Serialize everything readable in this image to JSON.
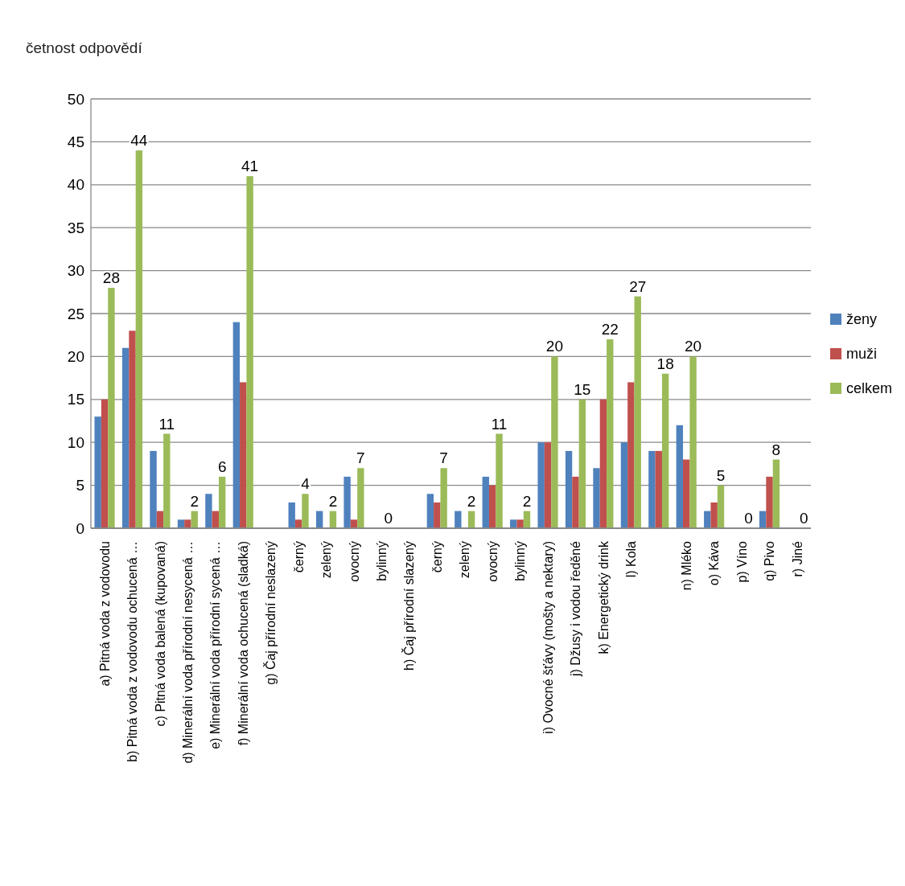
{
  "chart_data": {
    "type": "bar",
    "ylabel": "četnost odpovědí",
    "categories": [
      "a) Pitná voda z vodovodu",
      "b) Pitná voda z vodovodu ochucená …",
      "c) Pitná voda balená (kupovaná)",
      "d) Minerální voda přírodní nesycená …",
      "e) Minerální voda přírodní sycená …",
      "f) Minerální voda ochucená (sladká)",
      "g) Čaj přírodní neslazený",
      "černý",
      "zelený",
      "ovocný",
      "bylinný",
      "h) Čaj přírodní slazený",
      "černý",
      "zelený",
      "ovocný",
      "bylinný",
      "i) Ovocné šťávy (mošty a nektary)",
      "j) Džusy i vodou ředěné",
      "k) Energetický drink",
      "l) Kola",
      null,
      "n) Mléko",
      "o) Káva",
      "p) Víno",
      "q) Pivo",
      "r) Jiné"
    ],
    "series": [
      {
        "name": "ženy",
        "color": "#4f81bd",
        "values": [
          13,
          21,
          9,
          1,
          4,
          24,
          null,
          3,
          2,
          6,
          0,
          null,
          4,
          2,
          6,
          1,
          10,
          9,
          7,
          10,
          9,
          12,
          2,
          0,
          2,
          0
        ]
      },
      {
        "name": "muži",
        "color": "#c0504d",
        "values": [
          15,
          23,
          2,
          1,
          2,
          17,
          null,
          1,
          0,
          1,
          0,
          null,
          3,
          0,
          5,
          1,
          10,
          6,
          15,
          17,
          9,
          8,
          3,
          0,
          6,
          0
        ]
      },
      {
        "name": "celkem",
        "color": "#9bbb59",
        "values": [
          28,
          44,
          11,
          2,
          6,
          41,
          null,
          4,
          2,
          7,
          0,
          null,
          7,
          2,
          11,
          2,
          20,
          15,
          22,
          27,
          18,
          20,
          5,
          0,
          8,
          0
        ],
        "value_labels": [
          "28",
          "44",
          "11",
          "2",
          "6",
          "41",
          null,
          "4",
          "2",
          "7",
          "0",
          null,
          "7",
          "2",
          "11",
          "2",
          "20",
          "15",
          "22",
          "27",
          "18",
          "20",
          "5",
          "0",
          "8",
          "0"
        ]
      }
    ],
    "ylim": [
      0,
      50
    ],
    "yticks": [
      0,
      5,
      10,
      15,
      20,
      25,
      30,
      35,
      40,
      45,
      50
    ],
    "grid": "y",
    "legend": "right"
  }
}
